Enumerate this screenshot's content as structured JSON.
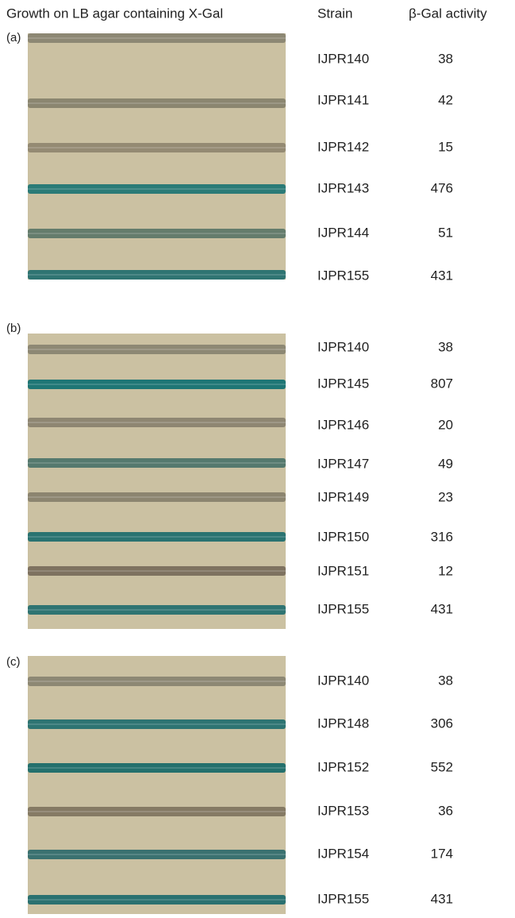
{
  "header": {
    "growth": "Growth on LB agar containing X-Gal",
    "strain": "Strain",
    "activity": "β-Gal activity"
  },
  "panels": [
    {
      "label": "(a)",
      "rows": [
        {
          "strain": "IJPR140",
          "activity": 38,
          "color": "#8d8874"
        },
        {
          "strain": "IJPR141",
          "activity": 42,
          "color": "#8b8670"
        },
        {
          "strain": "IJPR142",
          "activity": 15,
          "color": "#948a73"
        },
        {
          "strain": "IJPR143",
          "activity": 476,
          "color": "#2b7b77"
        },
        {
          "strain": "IJPR144",
          "activity": 51,
          "color": "#647c6c"
        },
        {
          "strain": "IJPR155",
          "activity": 431,
          "color": "#2f7472"
        }
      ]
    },
    {
      "label": "(b)",
      "rows": [
        {
          "strain": "IJPR140",
          "activity": 38,
          "color": "#8d8874"
        },
        {
          "strain": "IJPR145",
          "activity": 807,
          "color": "#1f7675"
        },
        {
          "strain": "IJPR146",
          "activity": 20,
          "color": "#8e8672"
        },
        {
          "strain": "IJPR147",
          "activity": 49,
          "color": "#55796e"
        },
        {
          "strain": "IJPR149",
          "activity": 23,
          "color": "#8c8570"
        },
        {
          "strain": "IJPR150",
          "activity": 316,
          "color": "#2a7371"
        },
        {
          "strain": "IJPR151",
          "activity": 12,
          "color": "#7e7260"
        },
        {
          "strain": "IJPR155",
          "activity": 431,
          "color": "#2f7472"
        }
      ]
    },
    {
      "label": "(c)",
      "rows": [
        {
          "strain": "IJPR140",
          "activity": 38,
          "color": "#8d8874"
        },
        {
          "strain": "IJPR148",
          "activity": 306,
          "color": "#2d7472"
        },
        {
          "strain": "IJPR152",
          "activity": 552,
          "color": "#24706d"
        },
        {
          "strain": "IJPR153",
          "activity": 36,
          "color": "#857a64"
        },
        {
          "strain": "IJPR154",
          "activity": 174,
          "color": "#3a7170"
        },
        {
          "strain": "IJPR155",
          "activity": 431,
          "color": "#2a7170"
        }
      ]
    }
  ]
}
